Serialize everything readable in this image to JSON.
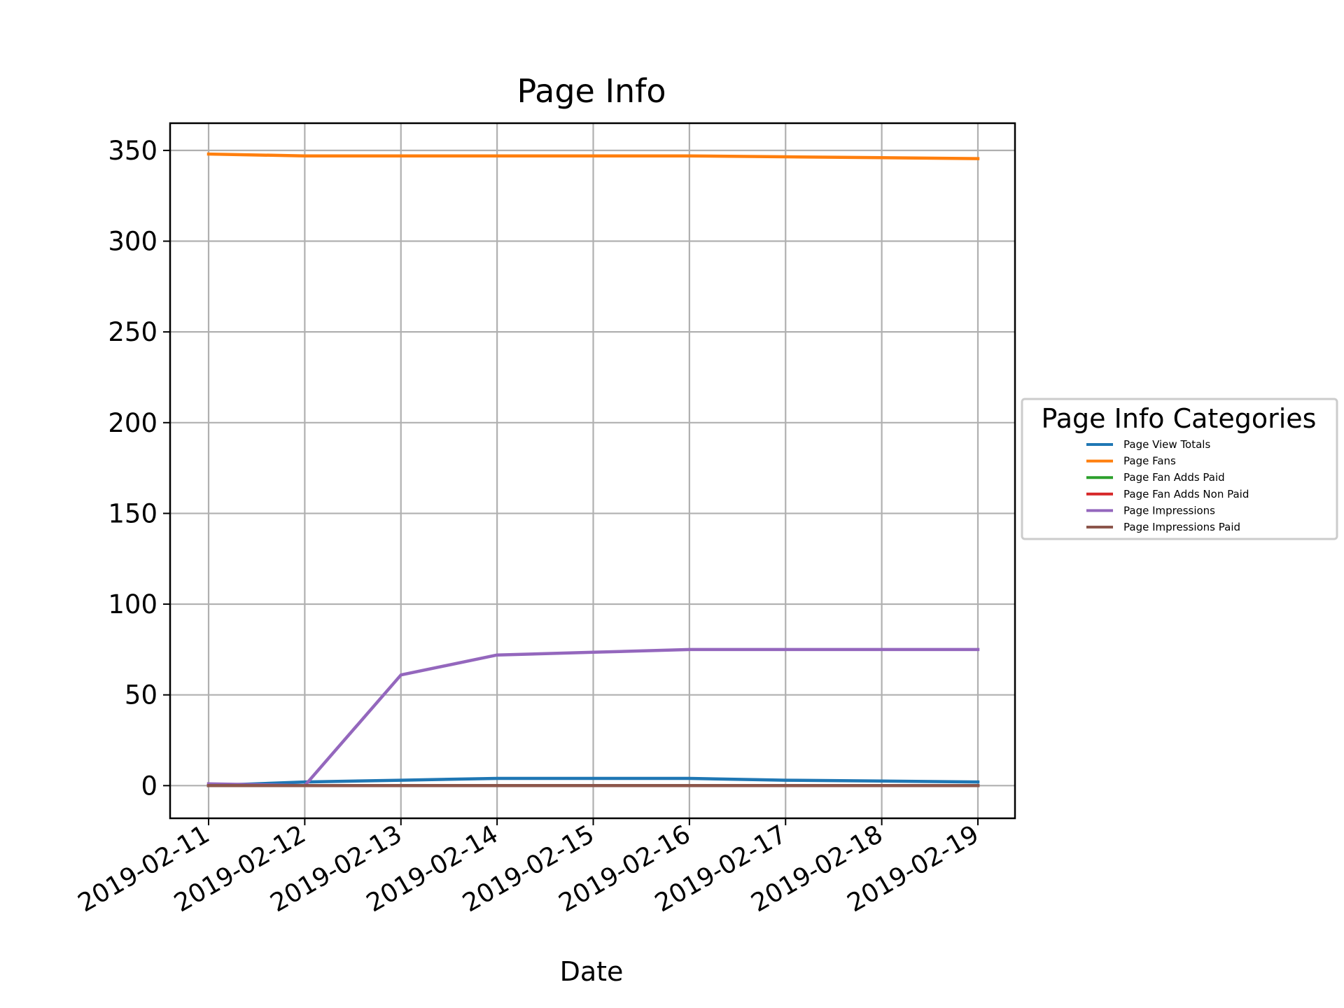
{
  "chart_data": {
    "type": "line",
    "title": "Page Info",
    "xlabel": "Date",
    "ylabel": "",
    "x": [
      "2019-02-11",
      "2019-02-12",
      "2019-02-13",
      "2019-02-14",
      "2019-02-15",
      "2019-02-16",
      "2019-02-17",
      "2019-02-18",
      "2019-02-19"
    ],
    "ylim": [
      -18,
      365
    ],
    "yticks": [
      0,
      50,
      100,
      150,
      200,
      250,
      300,
      350
    ],
    "grid": true,
    "legend": {
      "title": "Page Info Categories",
      "placement": "center-right outside"
    },
    "series": [
      {
        "name": "Page View Totals",
        "color": "#1f77b4",
        "values": [
          0,
          2,
          3,
          4,
          4,
          4,
          3,
          2.5,
          2
        ]
      },
      {
        "name": "Page Fans",
        "color": "#ff7f0e",
        "values": [
          348,
          347,
          347,
          347,
          347,
          347,
          346.5,
          346,
          345.5
        ]
      },
      {
        "name": "Page Fan Adds Paid",
        "color": "#2ca02c",
        "values": [
          0,
          0,
          0,
          0,
          0,
          0,
          0,
          0,
          0
        ]
      },
      {
        "name": "Page Fan Adds Non Paid",
        "color": "#d62728",
        "values": [
          0,
          0,
          0,
          0,
          0,
          0,
          0,
          0,
          0
        ]
      },
      {
        "name": "Page Impressions",
        "color": "#9467bd",
        "values": [
          1,
          0,
          61,
          72,
          73.5,
          75,
          75,
          75,
          75
        ]
      },
      {
        "name": "Page Impressions Paid",
        "color": "#8c564b",
        "values": [
          0,
          0,
          0,
          0,
          0,
          0,
          0,
          0,
          0
        ]
      }
    ]
  }
}
